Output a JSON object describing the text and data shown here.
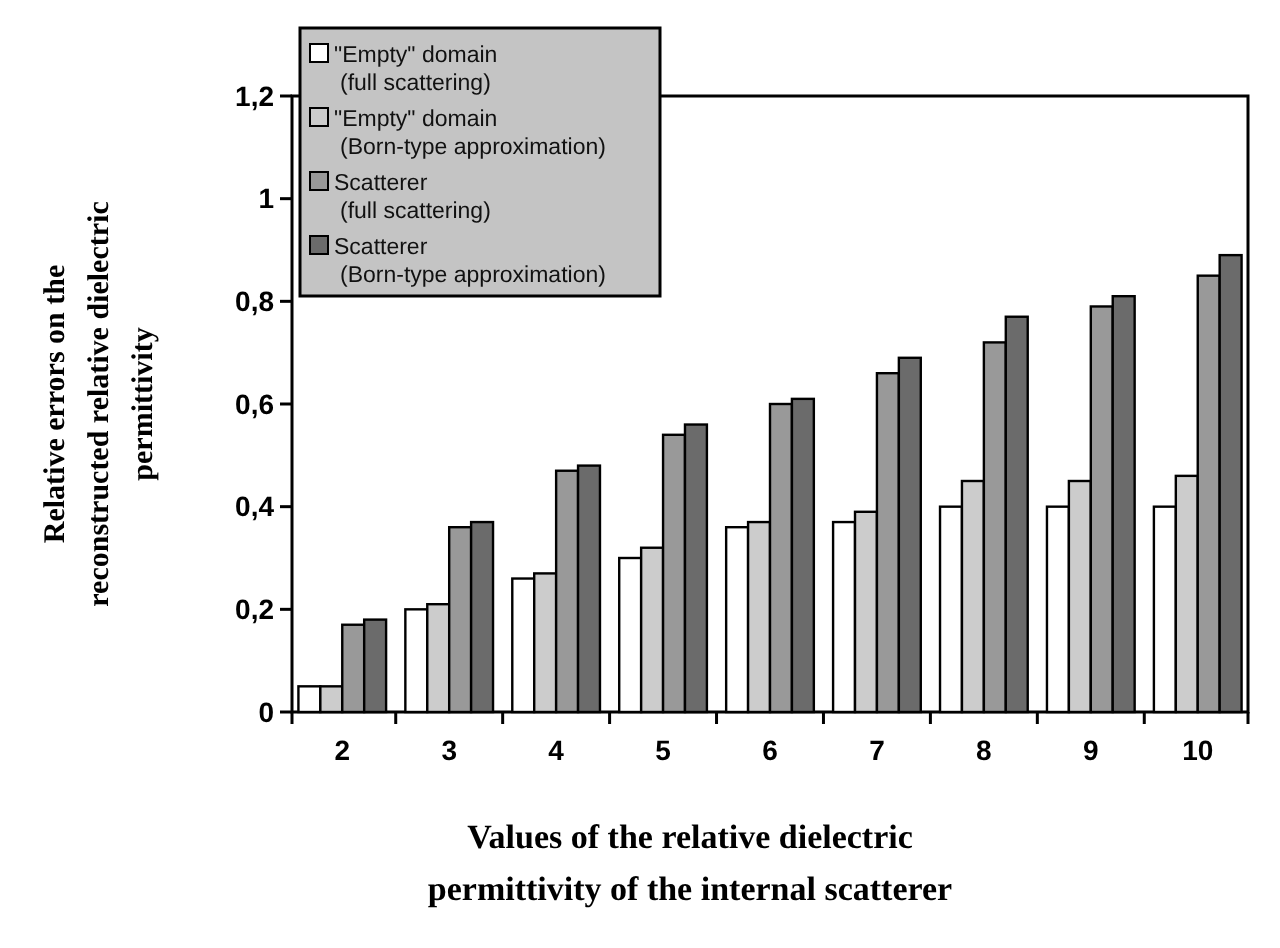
{
  "chart_data": {
    "type": "bar",
    "xlabel": "Values of the relative dielectric\npermittivity of the internal scatterer",
    "ylabel": "Relative errors on the\nreconstructed relative dielectric\npermittivity",
    "categories": [
      "2",
      "3",
      "4",
      "5",
      "6",
      "7",
      "8",
      "9",
      "10"
    ],
    "series": [
      {
        "name": "\"Empty\" domain\n(full scattering)",
        "color": "#ffffff",
        "values": [
          0.05,
          0.2,
          0.26,
          0.3,
          0.36,
          0.37,
          0.4,
          0.4,
          0.4
        ]
      },
      {
        "name": "\"Empty\" domain\n(Born-type approximation)",
        "color": "#cccccc",
        "values": [
          0.05,
          0.21,
          0.27,
          0.32,
          0.37,
          0.39,
          0.45,
          0.45,
          0.46
        ]
      },
      {
        "name": "Scatterer\n(full scattering)",
        "color": "#999999",
        "values": [
          0.17,
          0.36,
          0.47,
          0.54,
          0.6,
          0.66,
          0.72,
          0.79,
          0.85
        ]
      },
      {
        "name": "Scatterer\n(Born-type approximation)",
        "color": "#6b6b6b",
        "values": [
          0.18,
          0.37,
          0.48,
          0.56,
          0.61,
          0.69,
          0.77,
          0.81,
          0.89
        ]
      }
    ],
    "ylim": [
      0,
      1.2
    ],
    "yticks": [
      0,
      {
        "value": 0.2,
        "label": "0,2"
      },
      {
        "value": 0.4,
        "label": "0,4"
      },
      {
        "value": 0.6,
        "label": "0,6"
      },
      {
        "value": 0.8,
        "label": "0,8"
      },
      1,
      {
        "value": 1.2,
        "label": "1,2"
      }
    ],
    "grid": false,
    "legend": "top left"
  }
}
